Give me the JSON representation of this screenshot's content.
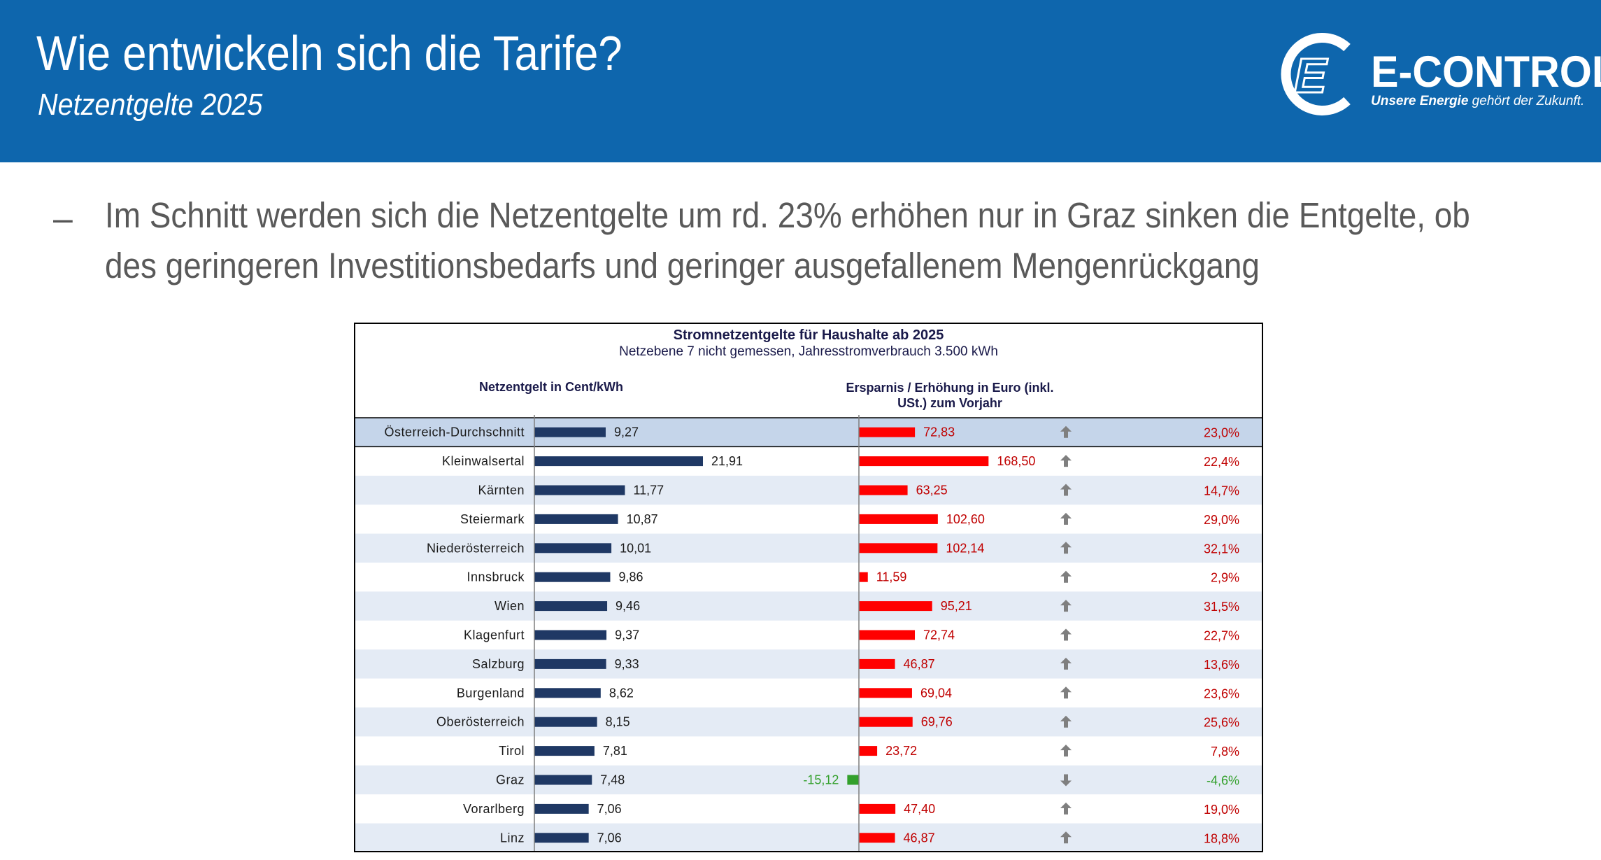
{
  "header": {
    "title": "Wie entwickeln sich die Tarife?",
    "subtitle": "Netzentgelte 2025",
    "logo_word": "E-CONTROL",
    "logo_tag_bold": "Unsere Energie",
    "logo_tag_rest": " gehört der Zukunft."
  },
  "bullet": {
    "dash": "–",
    "line1": "Im Schnitt werden sich die Netzentgelte um rd. 23% erhöhen nur in Graz sinken die Entgelte, ob",
    "line2": "des geringeren Investitionsbedarfs und geringer ausgefallenem Mengenrückgang"
  },
  "colors": {
    "header_bg": "#0e66ad",
    "left_bar": "#1f3864",
    "right_bar_up": "#ff0000",
    "right_bar_down": "#33a02c",
    "percent_up": "#c00000",
    "percent_down": "#33a02c",
    "highlight_row": "#c5d5ea",
    "alt_row": "#e4ebf5"
  },
  "chart_data": {
    "type": "bar",
    "title": "Stromnetzentgelte für Haushalte ab 2025",
    "subtitle": "Netzebene 7 nicht gemessen, Jahresstromverbrauch  3.500 kWh",
    "left_header": "Netzentgelt in Cent/kWh",
    "right_header_line1": "Ersparnis / Erhöhung in Euro (inkl.",
    "right_header_line2": "USt.) zum Vorjahr",
    "rows": [
      {
        "name": "Österreich-Durchschnitt",
        "cent": 9.27,
        "cent_label": "9,27",
        "euro": 72.83,
        "euro_label": "72,83",
        "dir": "up",
        "pct": "23,0%",
        "highlight": true
      },
      {
        "name": "Kleinwalsertal",
        "cent": 21.91,
        "cent_label": "21,91",
        "euro": 168.5,
        "euro_label": "168,50",
        "dir": "up",
        "pct": "22,4%"
      },
      {
        "name": "Kärnten",
        "cent": 11.77,
        "cent_label": "11,77",
        "euro": 63.25,
        "euro_label": "63,25",
        "dir": "up",
        "pct": "14,7%"
      },
      {
        "name": "Steiermark",
        "cent": 10.87,
        "cent_label": "10,87",
        "euro": 102.6,
        "euro_label": "102,60",
        "dir": "up",
        "pct": "29,0%"
      },
      {
        "name": "Niederösterreich",
        "cent": 10.01,
        "cent_label": "10,01",
        "euro": 102.14,
        "euro_label": "102,14",
        "dir": "up",
        "pct": "32,1%"
      },
      {
        "name": "Innsbruck",
        "cent": 9.86,
        "cent_label": "9,86",
        "euro": 11.59,
        "euro_label": "11,59",
        "dir": "up",
        "pct": "2,9%"
      },
      {
        "name": "Wien",
        "cent": 9.46,
        "cent_label": "9,46",
        "euro": 95.21,
        "euro_label": "95,21",
        "dir": "up",
        "pct": "31,5%"
      },
      {
        "name": "Klagenfurt",
        "cent": 9.37,
        "cent_label": "9,37",
        "euro": 72.74,
        "euro_label": "72,74",
        "dir": "up",
        "pct": "22,7%"
      },
      {
        "name": "Salzburg",
        "cent": 9.33,
        "cent_label": "9,33",
        "euro": 46.87,
        "euro_label": "46,87",
        "dir": "up",
        "pct": "13,6%"
      },
      {
        "name": "Burgenland",
        "cent": 8.62,
        "cent_label": "8,62",
        "euro": 69.04,
        "euro_label": "69,04",
        "dir": "up",
        "pct": "23,6%"
      },
      {
        "name": "Oberösterreich",
        "cent": 8.15,
        "cent_label": "8,15",
        "euro": 69.76,
        "euro_label": "69,76",
        "dir": "up",
        "pct": "25,6%"
      },
      {
        "name": "Tirol",
        "cent": 7.81,
        "cent_label": "7,81",
        "euro": 23.72,
        "euro_label": "23,72",
        "dir": "up",
        "pct": "7,8%"
      },
      {
        "name": "Graz",
        "cent": 7.48,
        "cent_label": "7,48",
        "euro": -15.12,
        "euro_label": "-15,12",
        "dir": "down",
        "pct": "-4,6%"
      },
      {
        "name": "Vorarlberg",
        "cent": 7.06,
        "cent_label": "7,06",
        "euro": 47.4,
        "euro_label": "47,40",
        "dir": "up",
        "pct": "19,0%"
      },
      {
        "name": "Linz",
        "cent": 7.06,
        "cent_label": "7,06",
        "euro": 46.87,
        "euro_label": "46,87",
        "dir": "up",
        "pct": "18,8%"
      }
    ]
  }
}
